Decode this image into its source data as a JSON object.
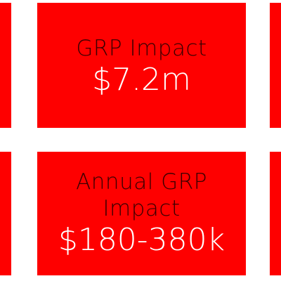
{
  "colors": {
    "tile_background": "#fe0000",
    "label_text": "#3a0000",
    "value_text": "#ffffff",
    "page_background": "#ffffff"
  },
  "tiles": [
    {
      "label": "GRP Impact",
      "value": "$7.2m"
    },
    {
      "label": "Annual GRP Impact",
      "value": "$180-380k"
    }
  ]
}
